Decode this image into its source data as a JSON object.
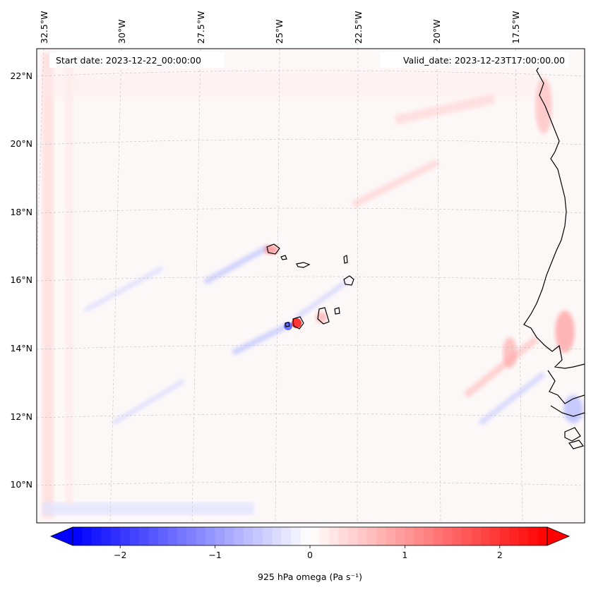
{
  "map": {
    "start_date": "Start date: 2023-12-22_00:00:00",
    "valid_date": "Valid_date: 2023-12-23T17:00:00.00",
    "lon_labels": [
      "32.5°W",
      "30°W",
      "27.5°W",
      "25°W",
      "22.5°W",
      "20°W",
      "17.5°W"
    ],
    "lat_labels": [
      "22°N",
      "20°N",
      "18°N",
      "16°N",
      "14°N",
      "12°N",
      "10°N"
    ],
    "coastline_color": "#000000",
    "gridline_color": "#bdbdbd"
  },
  "colorbar": {
    "label": "925 hPa omega (Pa s⁻¹)",
    "ticks": [
      "−2",
      "−1",
      "0",
      "1",
      "2"
    ],
    "tick_values": [
      -2,
      -1,
      0,
      1,
      2
    ],
    "range": [
      -2.5,
      2.5
    ],
    "low_color": "#0000ff",
    "mid_color": "#ffffff",
    "high_color": "#ff0000"
  }
}
